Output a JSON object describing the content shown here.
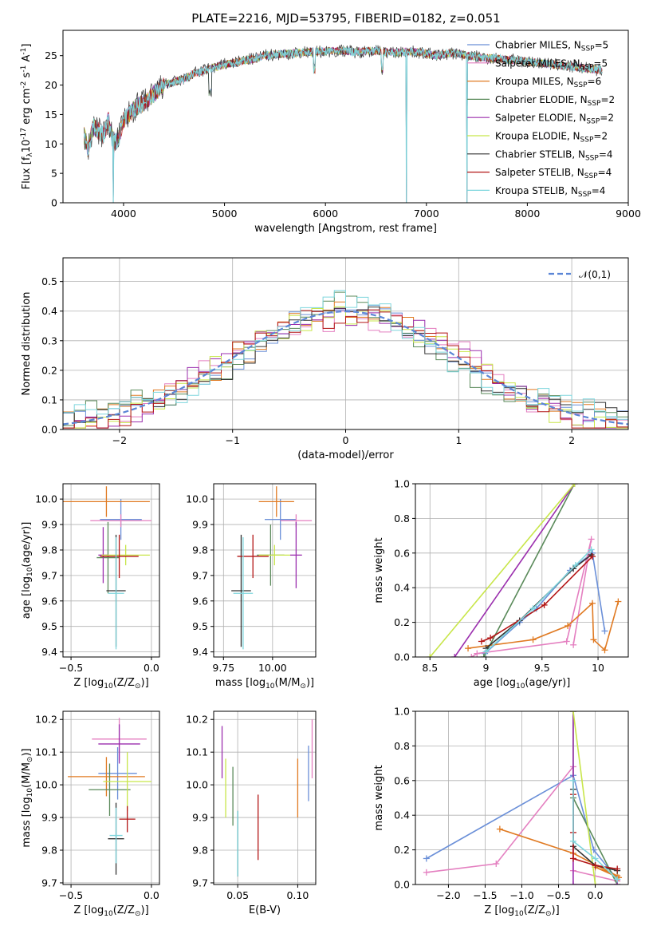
{
  "figure": {
    "title": "PLATE=2216, MJD=53795, FIBERID=0182, z=0.051"
  },
  "chart_data": [
    {
      "type": "line",
      "name": "spectrum",
      "xlabel": "wavelength [Angstrom, rest frame]",
      "ylabel": "Flux [f$_\\lambda$10$^{-17}$ erg cm$^{-2}$ s$^{-1}$ A$^{-1}$]",
      "xlim": [
        3400,
        9000
      ],
      "ylim": [
        0,
        29.3
      ],
      "xticks": [
        4000,
        5000,
        6000,
        7000,
        8000,
        9000
      ],
      "yticks": [
        0,
        5,
        10,
        15,
        20,
        25
      ],
      "grid": false,
      "legend_position": "top-right",
      "data_shape": [
        [
          3600,
          12
        ],
        [
          3650,
          9
        ],
        [
          3700,
          13
        ],
        [
          3800,
          11.5
        ],
        [
          3850,
          14
        ],
        [
          3900,
          10
        ],
        [
          3950,
          11
        ],
        [
          4000,
          14
        ],
        [
          4100,
          16
        ],
        [
          4200,
          17
        ],
        [
          4300,
          18.5
        ],
        [
          4400,
          20
        ],
        [
          4500,
          20.5
        ],
        [
          4600,
          21
        ],
        [
          4700,
          22
        ],
        [
          4800,
          22.5
        ],
        [
          4900,
          23
        ],
        [
          5000,
          23.5
        ],
        [
          5100,
          23.8
        ],
        [
          5200,
          24.2
        ],
        [
          5300,
          24.5
        ],
        [
          5400,
          25
        ],
        [
          5500,
          25.2
        ],
        [
          5600,
          25.3
        ],
        [
          5700,
          25.4
        ],
        [
          5800,
          25.6
        ],
        [
          5900,
          25.7
        ],
        [
          6000,
          25.7
        ],
        [
          6100,
          25.8
        ],
        [
          6200,
          25.9
        ],
        [
          6300,
          25.6
        ],
        [
          6400,
          25.8
        ],
        [
          6500,
          25.8
        ],
        [
          6600,
          25.6
        ],
        [
          6700,
          25.5
        ],
        [
          6800,
          25.7
        ],
        [
          6900,
          25.6
        ],
        [
          7000,
          25.4
        ],
        [
          7100,
          25
        ],
        [
          7200,
          25.3
        ],
        [
          7300,
          25.4
        ],
        [
          7400,
          25
        ],
        [
          7500,
          24.8
        ],
        [
          7600,
          24.6
        ],
        [
          7700,
          24.5
        ],
        [
          7800,
          24.3
        ],
        [
          7900,
          24.2
        ],
        [
          8000,
          24
        ],
        [
          8100,
          23.8
        ],
        [
          8200,
          23.6
        ],
        [
          8300,
          23.4
        ],
        [
          8400,
          23.2
        ],
        [
          8500,
          23
        ],
        [
          8600,
          22.8
        ],
        [
          8700,
          22.6
        ],
        [
          8750,
          22.5
        ]
      ],
      "series": [
        {
          "name": "Chabrier MILES, N$_{SSP}$=5",
          "color": "#6a8fd8"
        },
        {
          "name": "Salpeter MILES, N$_{SSP}$=5",
          "color": "#e47fc0"
        },
        {
          "name": "Kroupa MILES, N$_{SSP}$=6",
          "color": "#e07a22"
        },
        {
          "name": "Chabrier ELODIE, N$_{SSP}$=2",
          "color": "#5a8a5a"
        },
        {
          "name": "Salpeter ELODIE, N$_{SSP}$=2",
          "color": "#9b2fae"
        },
        {
          "name": "Kroupa ELODIE, N$_{SSP}$=2",
          "color": "#c8e64a"
        },
        {
          "name": "Chabrier STELIB, N$_{SSP}$=4",
          "color": "#333333"
        },
        {
          "name": "Salpeter STELIB, N$_{SSP}$=4",
          "color": "#b31515"
        },
        {
          "name": "Kroupa STELIB, N$_{SSP}$=4",
          "color": "#7fd6dd"
        }
      ],
      "dips_to_zero_at_x": [
        3900,
        6800,
        7400
      ]
    },
    {
      "type": "histogram",
      "name": "residuals",
      "xlabel": "(data-model)/error",
      "ylabel": "Normed distribution",
      "xlim": [
        -2.5,
        2.5
      ],
      "ylim": [
        0,
        0.58
      ],
      "xticks": [
        -2,
        -1,
        0,
        1,
        2
      ],
      "yticks": [
        0.0,
        0.1,
        0.2,
        0.3,
        0.4,
        0.5
      ],
      "grid": true,
      "legend_position": "top-right",
      "reference_curve": {
        "name": "$\\mathcal{N}(0,1)$",
        "color": "#5b86d6",
        "style": "dashed"
      },
      "bin_width": 0.1,
      "bin_start": -2.5,
      "series_colors": [
        "#6a8fd8",
        "#e47fc0",
        "#e07a22",
        "#5a8a5a",
        "#9b2fae",
        "#c8e64a",
        "#333333",
        "#b31515",
        "#7fd6dd"
      ],
      "spread": [
        0.02,
        -0.03,
        0.015,
        0.04,
        -0.025,
        -0.015,
        0.03,
        -0.02,
        0.035
      ]
    },
    {
      "type": "errorbar",
      "name": "age-vs-Z",
      "xlabel": "Z [log$_{10}$($Z/Z_\\odot$)]",
      "ylabel": "age  [log$_{10}$($age/yr$)]",
      "xlim": [
        -0.55,
        0.05
      ],
      "ylim": [
        9.38,
        10.06
      ],
      "xticks": [
        -0.5,
        0.0
      ],
      "xticklabels": [
        "−0.5",
        "0.0"
      ],
      "yticks": [
        9.4,
        9.5,
        9.6,
        9.7,
        9.8,
        9.9,
        10.0
      ],
      "grid": true,
      "points": [
        {
          "x": -0.19,
          "y": 9.92,
          "xerr": 0.13,
          "yerr": 0.08,
          "color": "#6a8fd8"
        },
        {
          "x": -0.19,
          "y": 9.915,
          "xerr": 0.19,
          "yerr": 0.025,
          "color": "#e47fc0"
        },
        {
          "x": -0.28,
          "y": 9.99,
          "xerr": 0.27,
          "yerr": 0.06,
          "color": "#e07a22"
        },
        {
          "x": -0.27,
          "y": 9.77,
          "xerr": 0.07,
          "yerr": 0.14,
          "color": "#5a8a5a"
        },
        {
          "x": -0.3,
          "y": 9.78,
          "xerr": 0.03,
          "yerr": 0.11,
          "color": "#9b2fae"
        },
        {
          "x": -0.16,
          "y": 9.78,
          "xerr": 0.15,
          "yerr": 0.04,
          "color": "#c8e64a"
        },
        {
          "x": -0.22,
          "y": 9.64,
          "xerr": 0.06,
          "yerr": 0.22,
          "color": "#333333"
        },
        {
          "x": -0.2,
          "y": 9.775,
          "xerr": 0.12,
          "yerr": 0.085,
          "color": "#b31515"
        },
        {
          "x": -0.22,
          "y": 9.63,
          "xerr": 0.05,
          "yerr": 0.22,
          "color": "#7fd6dd"
        }
      ]
    },
    {
      "type": "errorbar",
      "name": "age-vs-mass",
      "xlabel": "mass [log$_{10}$($M/M_\\odot$)]",
      "ylabel": "",
      "xlim": [
        9.7,
        10.22
      ],
      "ylim": [
        9.38,
        10.06
      ],
      "xticks": [
        9.75,
        10.0
      ],
      "xticklabels": [
        "9.75",
        "10.00"
      ],
      "yticks": [
        9.4,
        9.5,
        9.6,
        9.7,
        9.8,
        9.9,
        10.0
      ],
      "grid": true,
      "points": [
        {
          "x": 10.04,
          "y": 9.92,
          "xerr": 0.08,
          "yerr": 0.08,
          "color": "#6a8fd8"
        },
        {
          "x": 10.12,
          "y": 9.915,
          "xerr": 0.08,
          "yerr": 0.025,
          "color": "#e47fc0"
        },
        {
          "x": 10.02,
          "y": 9.99,
          "xerr": 0.09,
          "yerr": 0.06,
          "color": "#e07a22"
        },
        {
          "x": 9.99,
          "y": 9.78,
          "xerr": 0.07,
          "yerr": 0.12,
          "color": "#5a8a5a"
        },
        {
          "x": 10.12,
          "y": 9.78,
          "xerr": 0.03,
          "yerr": 0.13,
          "color": "#9b2fae"
        },
        {
          "x": 10.01,
          "y": 9.78,
          "xerr": 0.08,
          "yerr": 0.04,
          "color": "#c8e64a"
        },
        {
          "x": 9.84,
          "y": 9.64,
          "xerr": 0.05,
          "yerr": 0.22,
          "color": "#333333"
        },
        {
          "x": 9.9,
          "y": 9.775,
          "xerr": 0.08,
          "yerr": 0.085,
          "color": "#b31515"
        },
        {
          "x": 9.85,
          "y": 9.63,
          "xerr": 0.05,
          "yerr": 0.22,
          "color": "#7fd6dd"
        }
      ]
    },
    {
      "type": "line",
      "name": "weights-vs-age",
      "xlabel": "age  [log$_{10}$($age/yr$)]",
      "ylabel": "mass weight",
      "xlim": [
        8.37,
        10.27
      ],
      "ylim": [
        0,
        1
      ],
      "xticks": [
        8.5,
        9.0,
        9.5,
        10.0
      ],
      "yticks": [
        0.0,
        0.2,
        0.4,
        0.6,
        0.8,
        1.0
      ],
      "grid": true,
      "series": [
        {
          "color": "#6a8fd8",
          "x": [
            8.99,
            9.3,
            9.45,
            9.75,
            9.95,
            10.06
          ],
          "y": [
            0.02,
            0.2,
            0.28,
            0.5,
            0.6,
            0.15
          ]
        },
        {
          "color": "#e47fc0",
          "x": [
            8.87,
            8.92,
            9.72,
            9.94,
            9.78
          ],
          "y": [
            0.0,
            0.02,
            0.09,
            0.68,
            0.07
          ]
        },
        {
          "color": "#e07a22",
          "x": [
            8.84,
            9.42,
            9.73,
            9.95,
            9.96,
            10.06,
            10.18
          ],
          "y": [
            0.05,
            0.1,
            0.18,
            0.31,
            0.1,
            0.04,
            0.32
          ]
        },
        {
          "color": "#5a8a5a",
          "x": [
            8.98,
            9.79
          ],
          "y": [
            0.0,
            1.0
          ]
        },
        {
          "color": "#9b2fae",
          "x": [
            8.72,
            9.79
          ],
          "y": [
            0.0,
            1.0
          ]
        },
        {
          "color": "#c8e64a",
          "x": [
            8.5,
            9.79
          ],
          "y": [
            0.0,
            1.0
          ]
        },
        {
          "color": "#333333",
          "x": [
            9.0,
            9.3,
            9.78,
            9.94
          ],
          "y": [
            0.05,
            0.21,
            0.51,
            0.59
          ]
        },
        {
          "color": "#b31515",
          "x": [
            8.96,
            9.04,
            9.52,
            9.95
          ],
          "y": [
            0.09,
            0.11,
            0.3,
            0.58
          ]
        },
        {
          "color": "#7fd6dd",
          "x": [
            9.0,
            9.42,
            9.8,
            9.94
          ],
          "y": [
            0.03,
            0.28,
            0.53,
            0.62
          ]
        }
      ]
    },
    {
      "type": "errorbar",
      "name": "mass-vs-Z",
      "xlabel": "Z [log$_{10}$($Z/Z_\\odot$)]",
      "ylabel": "mass [log$_{10}$($M/M_\\odot$)]",
      "xlim": [
        -0.55,
        0.05
      ],
      "ylim": [
        9.695,
        10.225
      ],
      "xticks": [
        -0.5,
        0.0
      ],
      "xticklabels": [
        "−0.5",
        "0.0"
      ],
      "yticks": [
        9.7,
        9.8,
        9.9,
        10.0,
        10.1,
        10.2
      ],
      "grid": true,
      "points": [
        {
          "x": -0.21,
          "y": 10.035,
          "xerr": 0.12,
          "yerr": 0.08,
          "color": "#6a8fd8"
        },
        {
          "x": -0.2,
          "y": 10.14,
          "xerr": 0.17,
          "yerr": 0.065,
          "color": "#e47fc0"
        },
        {
          "x": -0.28,
          "y": 10.025,
          "xerr": 0.24,
          "yerr": 0.06,
          "color": "#e07a22"
        },
        {
          "x": -0.26,
          "y": 9.985,
          "xerr": 0.13,
          "yerr": 0.08,
          "color": "#5a8a5a"
        },
        {
          "x": -0.2,
          "y": 10.125,
          "xerr": 0.13,
          "yerr": 0.06,
          "color": "#9b2fae"
        },
        {
          "x": -0.15,
          "y": 10.01,
          "xerr": 0.15,
          "yerr": 0.09,
          "color": "#c8e64a"
        },
        {
          "x": -0.22,
          "y": 9.835,
          "xerr": 0.05,
          "yerr": 0.11,
          "color": "#333333"
        },
        {
          "x": -0.15,
          "y": 9.895,
          "xerr": 0.05,
          "yerr": 0.04,
          "color": "#b31515"
        },
        {
          "x": -0.22,
          "y": 9.845,
          "xerr": 0.04,
          "yerr": 0.085,
          "color": "#7fd6dd"
        }
      ]
    },
    {
      "type": "errorbar",
      "name": "mass-vs-EBV",
      "xlabel": "E(B-V)",
      "ylabel": "",
      "xlim": [
        0.03,
        0.115
      ],
      "ylim": [
        9.695,
        10.225
      ],
      "xticks": [
        0.05,
        0.1
      ],
      "xticklabels": [
        "0.05",
        "0.10"
      ],
      "yticks": [
        9.7,
        9.8,
        9.9,
        10.0,
        10.1,
        10.2
      ],
      "grid": true,
      "points": [
        {
          "x": 0.109,
          "y": 10.035,
          "xerr": 0,
          "yerr": 0.085,
          "color": "#6a8fd8"
        },
        {
          "x": 0.112,
          "y": 10.11,
          "xerr": 0,
          "yerr": 0.09,
          "color": "#e47fc0"
        },
        {
          "x": 0.1,
          "y": 9.99,
          "xerr": 0,
          "yerr": 0.09,
          "color": "#e07a22"
        },
        {
          "x": 0.046,
          "y": 9.965,
          "xerr": 0,
          "yerr": 0.09,
          "color": "#5a8a5a"
        },
        {
          "x": 0.037,
          "y": 10.1,
          "xerr": 0,
          "yerr": 0.08,
          "color": "#9b2fae"
        },
        {
          "x": 0.04,
          "y": 9.99,
          "xerr": 0,
          "yerr": 0.09,
          "color": "#c8e64a"
        },
        {
          "x": 0.05,
          "y": 9.82,
          "xerr": 0,
          "yerr": 0.1,
          "color": "#333333"
        },
        {
          "x": 0.067,
          "y": 9.87,
          "xerr": 0,
          "yerr": 0.1,
          "color": "#b31515"
        },
        {
          "x": 0.05,
          "y": 9.82,
          "xerr": 0,
          "yerr": 0.1,
          "color": "#7fd6dd"
        }
      ]
    },
    {
      "type": "line",
      "name": "weights-vs-Z",
      "xlabel": "Z [log$_{10}$($Z/Z_\\odot$)]",
      "ylabel": "mass weight",
      "xlim": [
        -2.45,
        0.45
      ],
      "ylim": [
        0,
        1
      ],
      "xticks": [
        -2.0,
        -1.5,
        -1.0,
        -0.5,
        0.0
      ],
      "xticklabels": [
        "−2.0",
        "−1.5",
        "−1.0",
        "−0.5",
        "0.0"
      ],
      "yticks": [
        0.0,
        0.2,
        0.4,
        0.6,
        0.8,
        1.0
      ],
      "grid": true,
      "series": [
        {
          "color": "#6a8fd8",
          "x": [
            -2.3,
            -0.3,
            -0.02,
            0.3
          ],
          "y": [
            0.15,
            0.63,
            0.2,
            0.03
          ]
        },
        {
          "color": "#e47fc0",
          "x": [
            -2.3,
            -1.35,
            -0.3,
            -0.3,
            0.3
          ],
          "y": [
            0.07,
            0.12,
            0.68,
            0.08,
            0.02
          ]
        },
        {
          "color": "#e07a22",
          "x": [
            -1.3,
            -0.3,
            0.3,
            0.0,
            0.32
          ],
          "y": [
            0.32,
            0.18,
            0.05,
            0.1,
            0.04
          ]
        },
        {
          "color": "#5a8a5a",
          "x": [
            -0.3,
            -0.3,
            0.3
          ],
          "y": [
            1.0,
            0.5,
            0.0
          ]
        },
        {
          "color": "#9b2fae",
          "x": [
            -0.3,
            -0.3,
            0.3
          ],
          "y": [
            1.0,
            0.0,
            0.0
          ]
        },
        {
          "color": "#c8e64a",
          "x": [
            -0.3,
            0.0
          ],
          "y": [
            1.0,
            0.0
          ]
        },
        {
          "color": "#333333",
          "x": [
            -0.3,
            -0.3,
            0.0,
            0.3
          ],
          "y": [
            0.55,
            0.22,
            0.11,
            0.08
          ]
        },
        {
          "color": "#b31515",
          "x": [
            -0.3,
            -0.3,
            -0.3,
            0.0,
            0.3
          ],
          "y": [
            0.52,
            0.3,
            0.15,
            0.11,
            0.09
          ]
        },
        {
          "color": "#7fd6dd",
          "x": [
            -0.3,
            -0.3,
            0.0,
            0.3
          ],
          "y": [
            0.6,
            0.25,
            0.15,
            0.03
          ]
        }
      ]
    }
  ]
}
